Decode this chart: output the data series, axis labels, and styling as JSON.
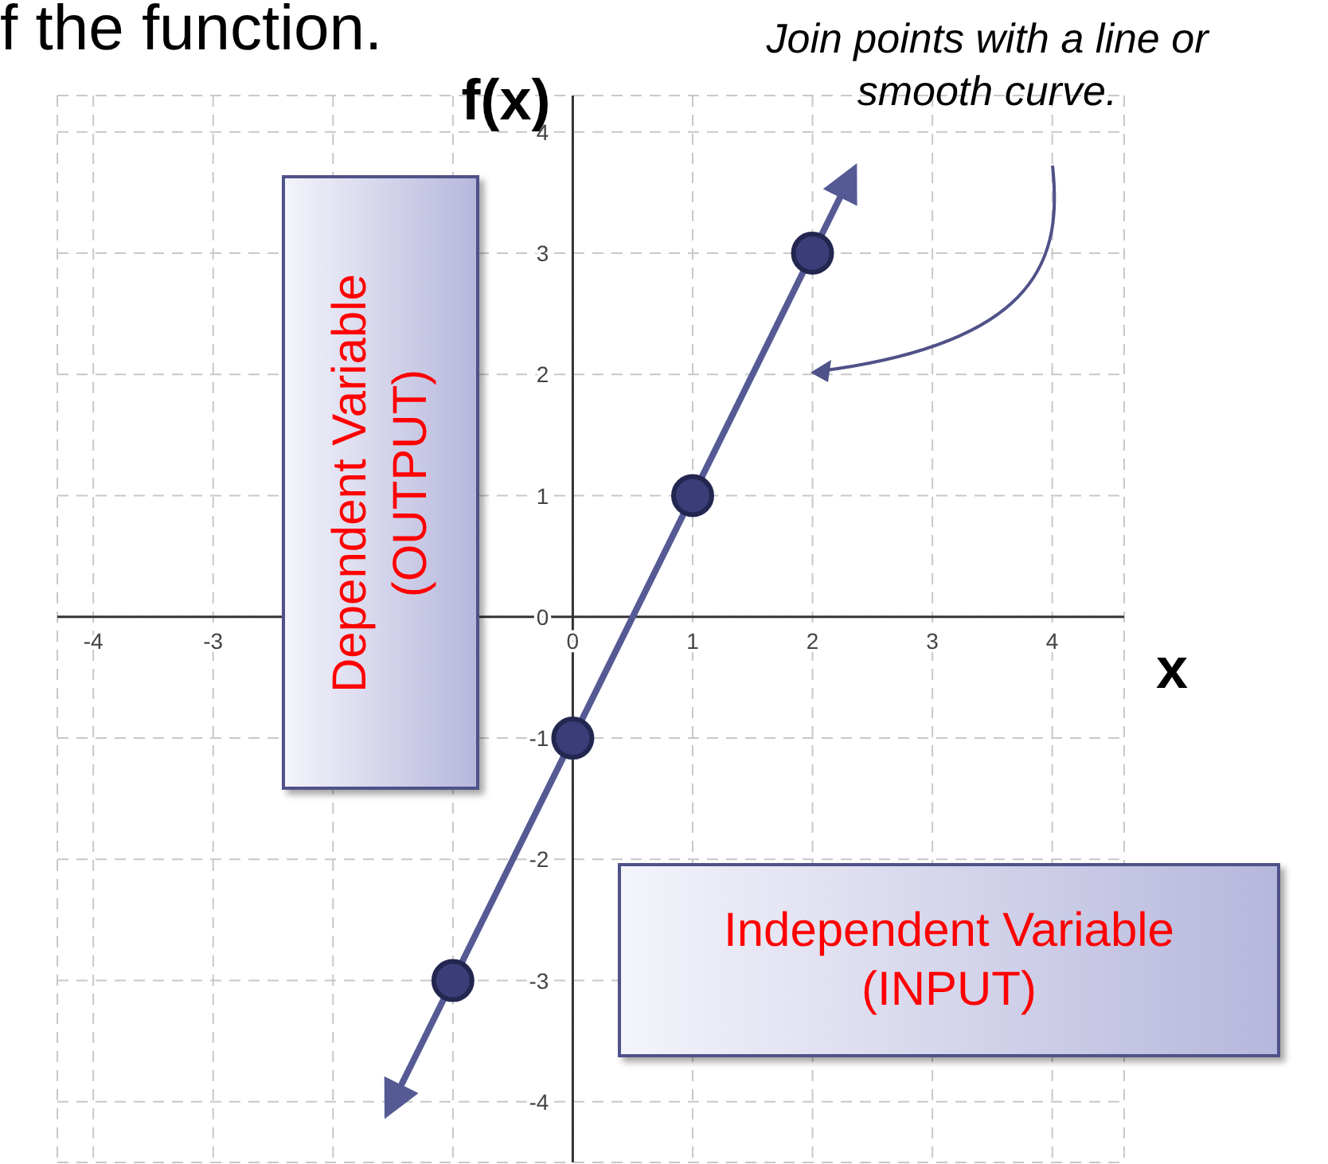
{
  "chart_data": {
    "type": "line",
    "title": "f the function.",
    "xlabel": "x",
    "ylabel": "f(x)",
    "annotations": [
      "Join points with a line or smooth curve.",
      "Dependent Variable (OUTPUT)",
      "Independent Variable (INPUT)"
    ],
    "xlim": [
      -4.3,
      4.6
    ],
    "ylim": [
      -4.5,
      4.3
    ],
    "xticks": [
      -4,
      -3,
      {
        "value": -2,
        "label": null
      },
      {
        "value": -1,
        "label": null
      },
      0,
      1,
      2,
      3,
      4
    ],
    "yticks": [
      -4,
      -3,
      -2,
      -1,
      0,
      1,
      2,
      3,
      4
    ],
    "grid": true,
    "series": [
      {
        "color": "#555a95",
        "x": [
          -1.5,
          2.3
        ],
        "values": [
          -4,
          3.6
        ],
        "marker": "none"
      },
      {
        "type": "scatter",
        "color": "#3a3d78",
        "x": [
          -1,
          0,
          1,
          2
        ],
        "values": [
          -3,
          -1,
          1,
          3
        ],
        "marker": "circle"
      }
    ]
  }
}
